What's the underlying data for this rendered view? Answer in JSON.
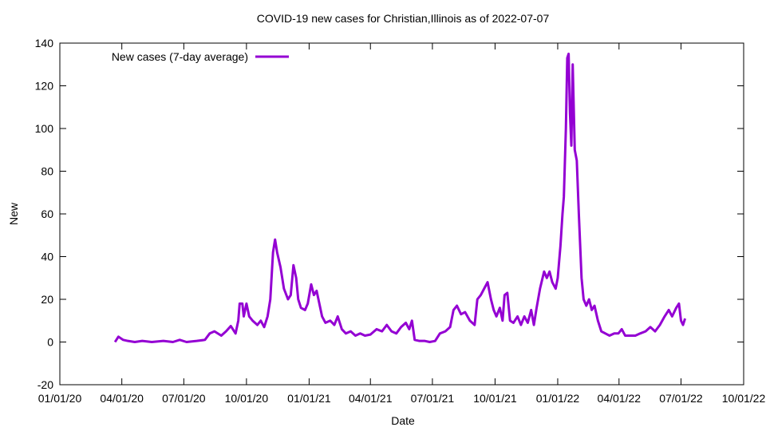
{
  "chart_data": {
    "type": "line",
    "title": "COVID-19 new cases for Christian,Illinois as of 2022-07-07",
    "x_label": "Date",
    "y_label": "New",
    "legend": "top-left",
    "xlim": [
      "2020-01-01",
      "2022-10-01"
    ],
    "xticks": [
      {
        "value": "2020-01-01",
        "label": "01/01/20"
      },
      {
        "value": "2020-04-01",
        "label": "04/01/20"
      },
      {
        "value": "2020-07-01",
        "label": "07/01/20"
      },
      {
        "value": "2020-10-01",
        "label": "10/01/20"
      },
      {
        "value": "2021-01-01",
        "label": "01/01/21"
      },
      {
        "value": "2021-04-01",
        "label": "04/01/21"
      },
      {
        "value": "2021-07-01",
        "label": "07/01/21"
      },
      {
        "value": "2021-10-01",
        "label": "10/01/21"
      },
      {
        "value": "2022-01-01",
        "label": "01/01/22"
      },
      {
        "value": "2022-04-01",
        "label": "04/01/22"
      },
      {
        "value": "2022-07-01",
        "label": "07/01/22"
      },
      {
        "value": "2022-10-01",
        "label": "10/01/22"
      }
    ],
    "ylim": [
      -20,
      140
    ],
    "yticks": [
      -20,
      0,
      20,
      40,
      60,
      80,
      100,
      120,
      140
    ],
    "x": [
      "2020-03-22",
      "2020-03-27",
      "2020-04-03",
      "2020-04-10",
      "2020-04-20",
      "2020-05-01",
      "2020-05-15",
      "2020-06-01",
      "2020-06-15",
      "2020-06-25",
      "2020-07-05",
      "2020-07-20",
      "2020-08-01",
      "2020-08-08",
      "2020-08-15",
      "2020-08-25",
      "2020-09-01",
      "2020-09-08",
      "2020-09-15",
      "2020-09-19",
      "2020-09-21",
      "2020-09-25",
      "2020-09-27",
      "2020-10-01",
      "2020-10-05",
      "2020-10-10",
      "2020-10-17",
      "2020-10-22",
      "2020-10-27",
      "2020-11-01",
      "2020-11-05",
      "2020-11-09",
      "2020-11-12",
      "2020-11-15",
      "2020-11-20",
      "2020-11-25",
      "2020-12-01",
      "2020-12-05",
      "2020-12-09",
      "2020-12-13",
      "2020-12-16",
      "2020-12-20",
      "2020-12-26",
      "2020-12-30",
      "2021-01-04",
      "2021-01-08",
      "2021-01-12",
      "2021-01-16",
      "2021-01-20",
      "2021-01-25",
      "2021-02-01",
      "2021-02-07",
      "2021-02-12",
      "2021-02-18",
      "2021-02-24",
      "2021-03-03",
      "2021-03-10",
      "2021-03-17",
      "2021-03-24",
      "2021-04-01",
      "2021-04-10",
      "2021-04-18",
      "2021-04-25",
      "2021-05-02",
      "2021-05-09",
      "2021-05-16",
      "2021-05-23",
      "2021-05-28",
      "2021-06-01",
      "2021-06-05",
      "2021-06-12",
      "2021-06-20",
      "2021-06-27",
      "2021-07-05",
      "2021-07-12",
      "2021-07-20",
      "2021-07-27",
      "2021-08-01",
      "2021-08-06",
      "2021-08-12",
      "2021-08-18",
      "2021-08-25",
      "2021-09-01",
      "2021-09-05",
      "2021-09-10",
      "2021-09-15",
      "2021-09-20",
      "2021-09-25",
      "2021-09-29",
      "2021-10-03",
      "2021-10-08",
      "2021-10-12",
      "2021-10-15",
      "2021-10-19",
      "2021-10-23",
      "2021-10-28",
      "2021-11-03",
      "2021-11-08",
      "2021-11-13",
      "2021-11-18",
      "2021-11-23",
      "2021-11-27",
      "2021-12-01",
      "2021-12-06",
      "2021-12-12",
      "2021-12-16",
      "2021-12-20",
      "2021-12-24",
      "2021-12-29",
      "2022-01-01",
      "2022-01-05",
      "2022-01-08",
      "2022-01-10",
      "2022-01-13",
      "2022-01-15",
      "2022-01-17",
      "2022-01-19",
      "2022-01-21",
      "2022-01-23",
      "2022-01-26",
      "2022-01-29",
      "2022-02-01",
      "2022-02-05",
      "2022-02-08",
      "2022-02-12",
      "2022-02-16",
      "2022-02-20",
      "2022-02-24",
      "2022-03-01",
      "2022-03-06",
      "2022-03-12",
      "2022-03-18",
      "2022-03-25",
      "2022-03-31",
      "2022-04-05",
      "2022-04-10",
      "2022-04-17",
      "2022-04-25",
      "2022-05-02",
      "2022-05-10",
      "2022-05-17",
      "2022-05-24",
      "2022-05-31",
      "2022-06-07",
      "2022-06-13",
      "2022-06-18",
      "2022-06-24",
      "2022-06-28",
      "2022-07-01",
      "2022-07-04",
      "2022-07-07"
    ],
    "series": [
      {
        "name": "New cases (7-day average)",
        "color": "#9400d3",
        "values": [
          0,
          2.5,
          1,
          0.5,
          0,
          0.5,
          0,
          0.5,
          0,
          1,
          0,
          0.5,
          1,
          4,
          5,
          3,
          5,
          7.5,
          4,
          10,
          18,
          18,
          12,
          18,
          12,
          10,
          8,
          10,
          7,
          12,
          20,
          42,
          48,
          42,
          35,
          25,
          20,
          22,
          36,
          30,
          20,
          16,
          15,
          18,
          27,
          22,
          24,
          18,
          12,
          9,
          10,
          8,
          12,
          6,
          4,
          5,
          3,
          4,
          3,
          3.5,
          6,
          5,
          8,
          5,
          4,
          7,
          9,
          6,
          10,
          1,
          0.5,
          0.5,
          0,
          0.5,
          4,
          5,
          7,
          15,
          17,
          13,
          14,
          10,
          8,
          20,
          22,
          25,
          28,
          20,
          15,
          12,
          16,
          10,
          22,
          23,
          10,
          9,
          12,
          8,
          12,
          9,
          15,
          8,
          16,
          25,
          33,
          30,
          33,
          28,
          25,
          30,
          45,
          60,
          68,
          100,
          133,
          135,
          107,
          92,
          130,
          90,
          85,
          60,
          30,
          20,
          17,
          20,
          15,
          17,
          10,
          5,
          4,
          3,
          4,
          4,
          6,
          3,
          3,
          3,
          4,
          5,
          7,
          5,
          8,
          12,
          15,
          12,
          16,
          18,
          10,
          8,
          11
        ]
      }
    ]
  }
}
